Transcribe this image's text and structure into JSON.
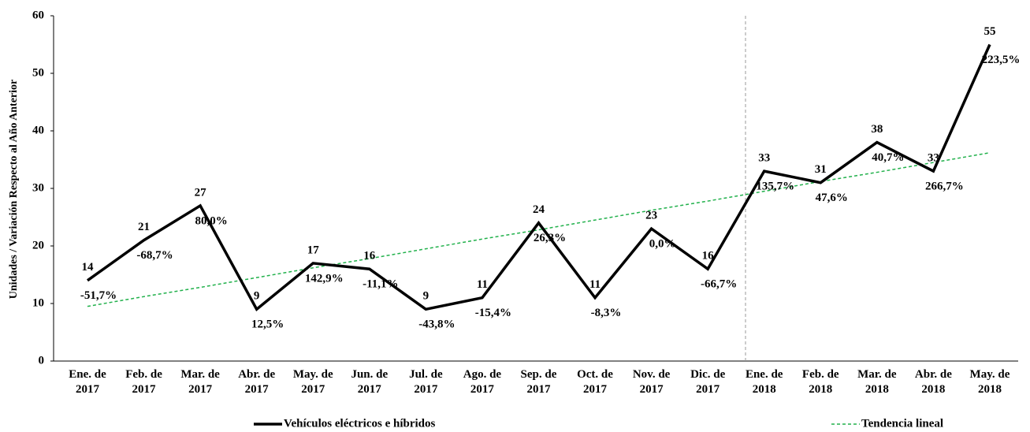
{
  "chart_data": {
    "type": "line",
    "ylabel": "Unidades / Variación Respecto al Año Anterior",
    "categories": [
      "Ene. de\n2017",
      "Feb. de\n2017",
      "Mar. de\n2017",
      "Abr. de\n2017",
      "May. de\n2017",
      "Jun. de\n2017",
      "Jul. de\n2017",
      "Ago. de\n2017",
      "Sep. de\n2017",
      "Oct. de\n2017",
      "Nov. de\n2017",
      "Dic. de\n2017",
      "Ene. de\n2018",
      "Feb. de\n2018",
      "Mar. de\n2018",
      "Abr. de\n2018",
      "May. de\n2018"
    ],
    "series": [
      {
        "name": "Vehículos eléctricos e híbridos",
        "color": "#000000",
        "values": [
          14,
          21,
          27,
          9,
          17,
          16,
          9,
          11,
          24,
          11,
          23,
          16,
          33,
          31,
          38,
          33,
          55
        ]
      },
      {
        "name": "Tendencia lineal",
        "color": "#22b14c",
        "dashed": true,
        "values": [
          9.5,
          11.2,
          12.8,
          14.5,
          16.2,
          17.8,
          19.5,
          21.2,
          22.8,
          24.5,
          26.2,
          27.8,
          29.5,
          31.2,
          32.8,
          34.5,
          36.2
        ]
      }
    ],
    "annotations": [
      "-51,7%",
      "-68,7%",
      "80,0%",
      "12,5%",
      "142,9%",
      "-11,1%",
      "-43,8%",
      "-15,4%",
      "26,3%",
      "-8,3%",
      "0,0%",
      "-66,7%",
      "135,7%",
      "47,6%",
      "40,7%",
      "266,7%",
      "223,5%"
    ],
    "ylim": [
      0,
      60
    ],
    "yticks": [
      0,
      10,
      20,
      30,
      40,
      50,
      60
    ],
    "grid": false,
    "legend": "bottom"
  }
}
